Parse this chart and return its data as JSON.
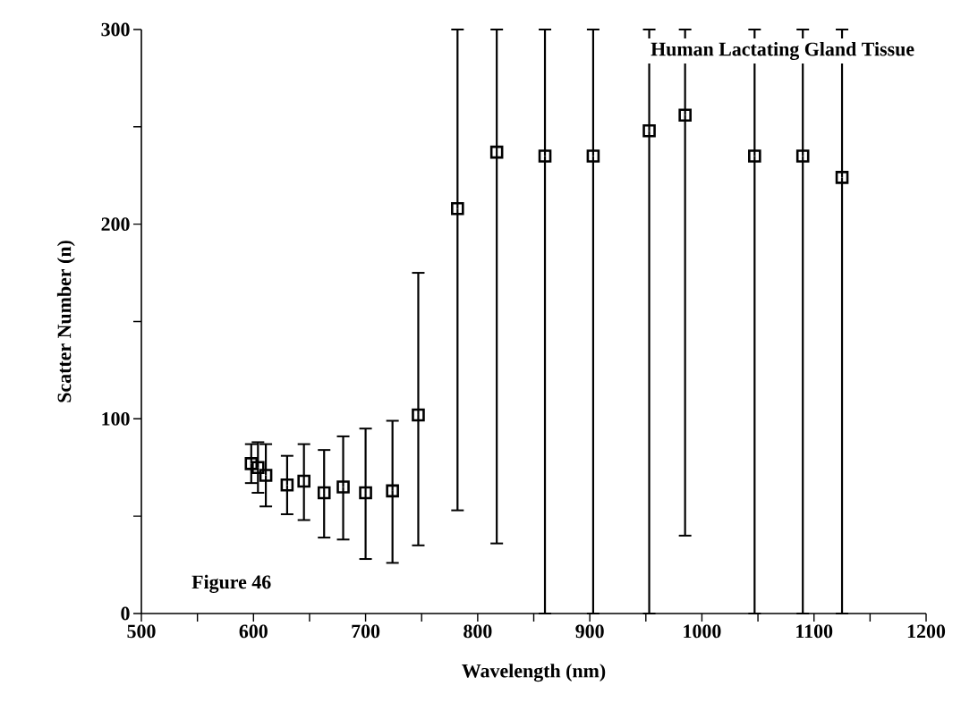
{
  "chart_data": {
    "type": "scatter",
    "title": "Human Lactating Gland Tissue",
    "xlabel": "Wavelength (nm)",
    "ylabel": "Scatter Number (n)",
    "annotations": [
      "Figure 46"
    ],
    "x": [
      598,
      604,
      611,
      630,
      645,
      663,
      680,
      700,
      724,
      747,
      782,
      817,
      860,
      903,
      953,
      985,
      1047,
      1090,
      1125
    ],
    "series": [
      {
        "color": "#000000",
        "values": [
          77,
          75,
          71,
          66,
          68,
          62,
          65,
          62,
          63,
          102,
          208,
          237,
          235,
          235,
          248,
          256,
          235,
          235,
          224
        ],
        "errors": [
          [
            67,
            87
          ],
          [
            62,
            88
          ],
          [
            55,
            87
          ],
          [
            51,
            81
          ],
          [
            48,
            87
          ],
          [
            39,
            84
          ],
          [
            38,
            91
          ],
          [
            28,
            95
          ],
          [
            26,
            99
          ],
          [
            35,
            175
          ],
          [
            53,
            300
          ],
          [
            36,
            300
          ],
          [
            0,
            300
          ],
          [
            0,
            300
          ],
          [
            0,
            300
          ],
          [
            40,
            300
          ],
          [
            0,
            300
          ],
          [
            0,
            300
          ],
          [
            0,
            300
          ]
        ]
      }
    ],
    "xlim": [
      500,
      1200
    ],
    "ylim": [
      0,
      300
    ],
    "xticks": [
      500,
      {
        "value": 550,
        "label": null
      },
      600,
      {
        "value": 650,
        "label": null
      },
      700,
      {
        "value": 750,
        "label": null
      },
      800,
      {
        "value": 850,
        "label": null
      },
      900,
      {
        "value": 950,
        "label": null
      },
      1000,
      {
        "value": 1050,
        "label": null
      },
      1100,
      {
        "value": 1150,
        "label": null
      },
      1200
    ],
    "yticks": [
      0,
      {
        "value": 50,
        "label": null
      },
      100,
      {
        "value": 150,
        "label": null
      },
      200,
      {
        "value": 250,
        "label": null
      },
      300
    ],
    "marker": "square"
  }
}
